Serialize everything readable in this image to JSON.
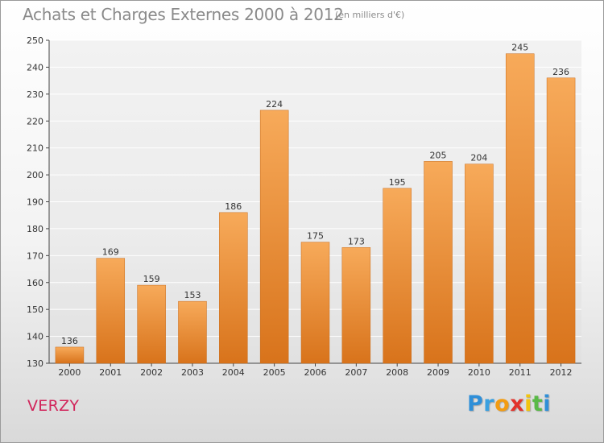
{
  "title": "Achats et Charges Externes 2000 à 2012",
  "subtitle": "(en milliers d'€)",
  "commune": "VERZY",
  "brand": {
    "letters": [
      "P",
      "r",
      "o",
      "x",
      "i",
      "t",
      "i"
    ],
    "colors": [
      "#2f8fd8",
      "#3aa0e0",
      "#f39c12",
      "#e2332b",
      "#f1c40f",
      "#59b946",
      "#2f8fd8"
    ]
  },
  "colors": {
    "bar_light": "#f7aa5a",
    "bar_dark": "#d8731b",
    "axis": "#444444",
    "grid": "#ffffff"
  },
  "chart_data": {
    "type": "bar",
    "categories": [
      "2000",
      "2001",
      "2002",
      "2003",
      "2004",
      "2005",
      "2006",
      "2007",
      "2008",
      "2009",
      "2010",
      "2011",
      "2012"
    ],
    "values": [
      136,
      169,
      159,
      153,
      186,
      224,
      175,
      173,
      195,
      205,
      204,
      245,
      236
    ],
    "ylim": [
      130,
      250
    ],
    "yticks": [
      130,
      140,
      150,
      160,
      170,
      180,
      190,
      200,
      210,
      220,
      230,
      240,
      250
    ],
    "grid": true,
    "xlabel": "",
    "ylabel": ""
  }
}
